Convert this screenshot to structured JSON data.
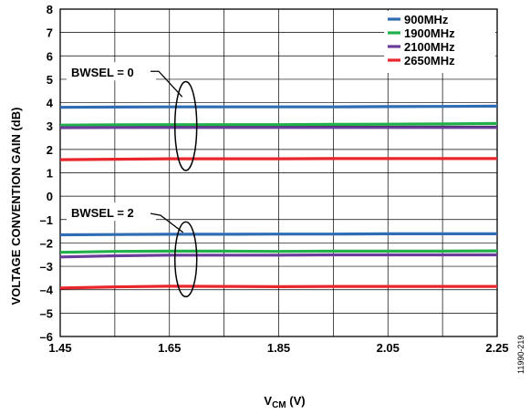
{
  "chart_data": {
    "type": "line",
    "title": "",
    "xlabel_main": "V",
    "xlabel_sub": "CM",
    "xlabel_unit": " (V)",
    "ylabel": "VOLTAGE CONVENTION GAIN (dB)",
    "xlim": [
      1.45,
      2.25
    ],
    "ylim": [
      -6,
      8
    ],
    "x_ticks": [
      1.45,
      1.65,
      1.85,
      2.05,
      2.25
    ],
    "x_tick_labels": [
      "1.45",
      "1.65",
      "1.85",
      "2.05",
      "2.25"
    ],
    "y_ticks": [
      -6,
      -5,
      -4,
      -3,
      -2,
      -1,
      0,
      1,
      2,
      3,
      4,
      5,
      6,
      7,
      8
    ],
    "y_tick_labels": [
      "–6",
      "–5",
      "–4",
      "–3",
      "–2",
      "–1",
      "0",
      "1",
      "2",
      "3",
      "4",
      "5",
      "6",
      "7",
      "8"
    ],
    "grid": true,
    "legend_position": "top-right",
    "x": [
      1.45,
      1.55,
      1.65,
      1.75,
      1.85,
      1.95,
      2.05,
      2.15,
      2.25
    ],
    "series": [
      {
        "name": "900MHz",
        "color": "#2e6db4",
        "group": "BWSEL = 0",
        "values": [
          3.8,
          3.81,
          3.82,
          3.82,
          3.82,
          3.82,
          3.83,
          3.84,
          3.85
        ]
      },
      {
        "name": "1900MHz",
        "color": "#22b04b",
        "group": "BWSEL = 0",
        "values": [
          3.04,
          3.05,
          3.06,
          3.06,
          3.06,
          3.07,
          3.08,
          3.09,
          3.11
        ]
      },
      {
        "name": "2100MHz",
        "color": "#6a3d9a",
        "group": "BWSEL = 0",
        "values": [
          2.93,
          2.94,
          2.94,
          2.94,
          2.94,
          2.94,
          2.94,
          2.94,
          2.94
        ]
      },
      {
        "name": "2650MHz",
        "color": "#e8262b",
        "group": "BWSEL = 0",
        "values": [
          1.56,
          1.58,
          1.6,
          1.6,
          1.6,
          1.61,
          1.61,
          1.61,
          1.61
        ]
      },
      {
        "name": "900MHz",
        "color": "#2e6db4",
        "group": "BWSEL = 2",
        "values": [
          -1.65,
          -1.64,
          -1.63,
          -1.63,
          -1.62,
          -1.62,
          -1.61,
          -1.61,
          -1.61
        ]
      },
      {
        "name": "1900MHz",
        "color": "#22b04b",
        "group": "BWSEL = 2",
        "values": [
          -2.4,
          -2.36,
          -2.35,
          -2.35,
          -2.36,
          -2.35,
          -2.35,
          -2.35,
          -2.34
        ]
      },
      {
        "name": "2100MHz",
        "color": "#6a3d9a",
        "group": "BWSEL = 2",
        "values": [
          -2.6,
          -2.55,
          -2.52,
          -2.52,
          -2.52,
          -2.51,
          -2.51,
          -2.51,
          -2.51
        ]
      },
      {
        "name": "2650MHz",
        "color": "#e8262b",
        "group": "BWSEL = 2",
        "values": [
          -3.93,
          -3.88,
          -3.85,
          -3.86,
          -3.87,
          -3.86,
          -3.86,
          -3.86,
          -3.86
        ]
      }
    ],
    "legend": [
      {
        "label": "900MHz",
        "color": "#2e6db4"
      },
      {
        "label": "1900MHz",
        "color": "#22b04b"
      },
      {
        "label": "2100MHz",
        "color": "#6a3d9a"
      },
      {
        "label": "2650MHz",
        "color": "#e8262b"
      }
    ],
    "annotations": [
      {
        "text": "BWSEL = 0",
        "x": 1.68,
        "y": 3.0
      },
      {
        "text": "BWSEL = 2",
        "x": 1.68,
        "y": -2.7
      }
    ]
  },
  "figure_id": "11990-219"
}
